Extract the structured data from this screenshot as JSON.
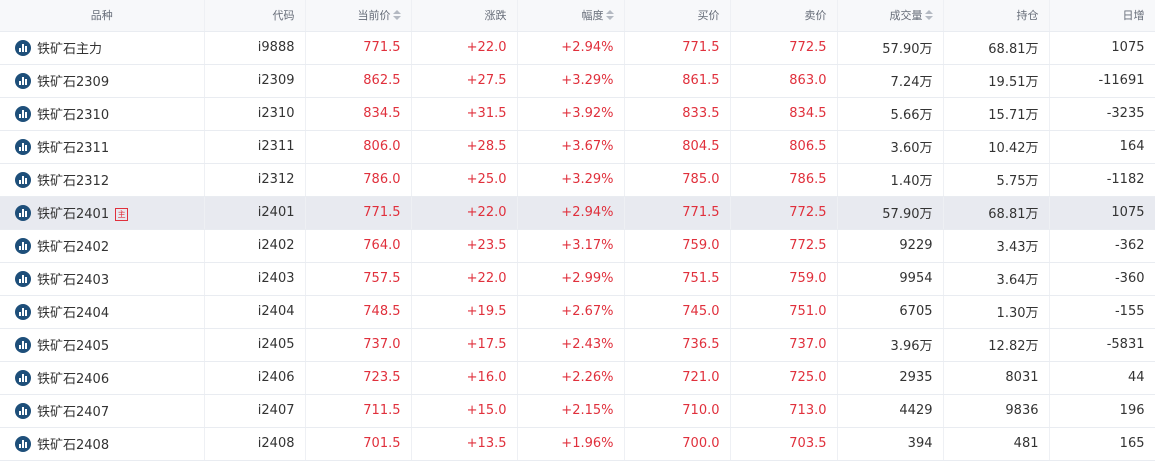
{
  "headers": {
    "name": "品种",
    "code": "代码",
    "last": "当前价",
    "change": "涨跌",
    "pct": "幅度",
    "bid": "买价",
    "ask": "卖价",
    "volume": "成交量",
    "oi": "持仓",
    "daily": "日增"
  },
  "rows": [
    {
      "name": "铁矿石主力",
      "code": "i9888",
      "last": "771.5",
      "change": "+22.0",
      "pct": "+2.94%",
      "bid": "771.5",
      "ask": "772.5",
      "volume": "57.90万",
      "oi": "68.81万",
      "daily": "1075"
    },
    {
      "name": "铁矿石2309",
      "code": "i2309",
      "last": "862.5",
      "change": "+27.5",
      "pct": "+3.29%",
      "bid": "861.5",
      "ask": "863.0",
      "volume": "7.24万",
      "oi": "19.51万",
      "daily": "-11691"
    },
    {
      "name": "铁矿石2310",
      "code": "i2310",
      "last": "834.5",
      "change": "+31.5",
      "pct": "+3.92%",
      "bid": "833.5",
      "ask": "834.5",
      "volume": "5.66万",
      "oi": "15.71万",
      "daily": "-3235"
    },
    {
      "name": "铁矿石2311",
      "code": "i2311",
      "last": "806.0",
      "change": "+28.5",
      "pct": "+3.67%",
      "bid": "804.5",
      "ask": "806.5",
      "volume": "3.60万",
      "oi": "10.42万",
      "daily": "164"
    },
    {
      "name": "铁矿石2312",
      "code": "i2312",
      "last": "786.0",
      "change": "+25.0",
      "pct": "+3.29%",
      "bid": "785.0",
      "ask": "786.5",
      "volume": "1.40万",
      "oi": "5.75万",
      "daily": "-1182"
    },
    {
      "name": "铁矿石2401",
      "code": "i2401",
      "last": "771.5",
      "change": "+22.0",
      "pct": "+2.94%",
      "bid": "771.5",
      "ask": "772.5",
      "volume": "57.90万",
      "oi": "68.81万",
      "daily": "1075",
      "badge": "主"
    },
    {
      "name": "铁矿石2402",
      "code": "i2402",
      "last": "764.0",
      "change": "+23.5",
      "pct": "+3.17%",
      "bid": "759.0",
      "ask": "772.5",
      "volume": "9229",
      "oi": "3.43万",
      "daily": "-362"
    },
    {
      "name": "铁矿石2403",
      "code": "i2403",
      "last": "757.5",
      "change": "+22.0",
      "pct": "+2.99%",
      "bid": "751.5",
      "ask": "759.0",
      "volume": "9954",
      "oi": "3.64万",
      "daily": "-360"
    },
    {
      "name": "铁矿石2404",
      "code": "i2404",
      "last": "748.5",
      "change": "+19.5",
      "pct": "+2.67%",
      "bid": "745.0",
      "ask": "751.0",
      "volume": "6705",
      "oi": "1.30万",
      "daily": "-155"
    },
    {
      "name": "铁矿石2405",
      "code": "i2405",
      "last": "737.0",
      "change": "+17.5",
      "pct": "+2.43%",
      "bid": "736.5",
      "ask": "737.0",
      "volume": "3.96万",
      "oi": "12.82万",
      "daily": "-5831"
    },
    {
      "name": "铁矿石2406",
      "code": "i2406",
      "last": "723.5",
      "change": "+16.0",
      "pct": "+2.26%",
      "bid": "721.0",
      "ask": "725.0",
      "volume": "2935",
      "oi": "8031",
      "daily": "44"
    },
    {
      "name": "铁矿石2407",
      "code": "i2407",
      "last": "711.5",
      "change": "+15.0",
      "pct": "+2.15%",
      "bid": "710.0",
      "ask": "713.0",
      "volume": "4429",
      "oi": "9836",
      "daily": "196"
    },
    {
      "name": "铁矿石2408",
      "code": "i2408",
      "last": "701.5",
      "change": "+13.5",
      "pct": "+1.96%",
      "bid": "700.0",
      "ask": "703.5",
      "volume": "394",
      "oi": "481",
      "daily": "165"
    }
  ],
  "icons": {
    "row": "bar-chart-icon",
    "sort": "sort-icon"
  },
  "colors": {
    "up": "#e0303c",
    "highlight_row": "#e8eaf0",
    "icon": "#1e4f7a"
  }
}
